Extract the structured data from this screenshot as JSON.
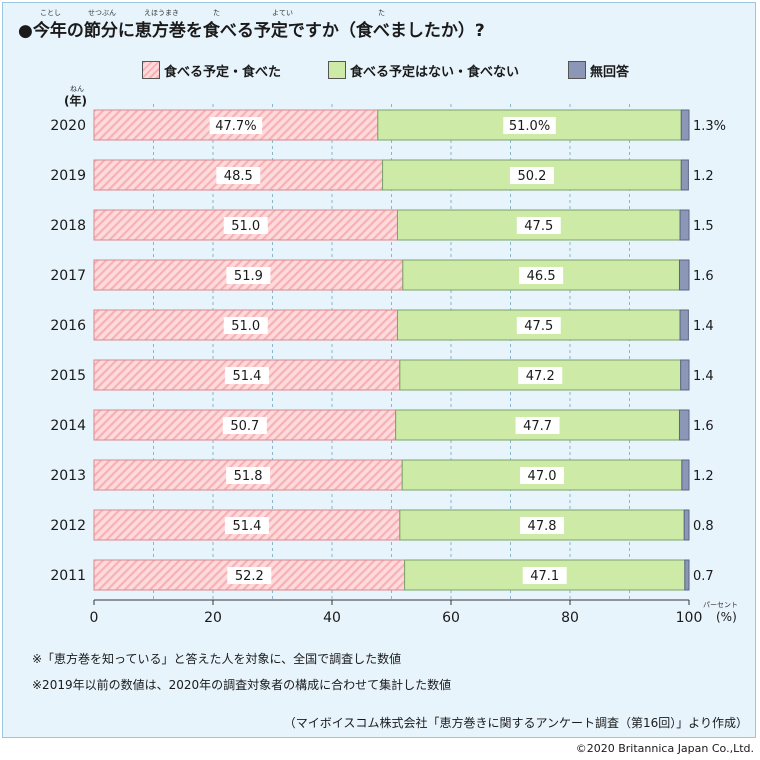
{
  "title": "●今年の節分に恵方巻を食べる予定ですか（食べましたか）?",
  "title_ruby": [
    "ことし",
    "せつぶん",
    "えほうまき",
    "た",
    "よてい",
    "た"
  ],
  "year_unit": "(年)",
  "year_unit_ruby": "ねん",
  "unit_label": "(%)",
  "unit_ruby": "パーセント",
  "notes": [
    "※「恵方巻を知っている」と答えた人を対象に、全国で調査した数値",
    "※2019年以前の数値は、2020年の調査対象者の構成に合わせて集計した数値"
  ],
  "source": "（マイボイスコム株式会社「恵方巻きに関するアンケート調査（第16回）」より作成）",
  "copyright": "©2020 Britannica Japan Co.,Ltd.",
  "colors": {
    "eat_fill": "#fddadc",
    "eat_hatch": "#f7b1b5",
    "no_fill": "#cdeaa6",
    "na_fill": "#8c97b8",
    "panel_bg": "#e8f4fb"
  },
  "chart_data": {
    "type": "bar",
    "orientation": "horizontal",
    "stacked": true,
    "categories": [
      "2020",
      "2019",
      "2018",
      "2017",
      "2016",
      "2015",
      "2014",
      "2013",
      "2012",
      "2011"
    ],
    "series": [
      {
        "name": "食べる予定・食べた",
        "values": [
          47.7,
          48.5,
          51.0,
          51.9,
          51.0,
          51.4,
          50.7,
          51.8,
          51.4,
          52.2
        ]
      },
      {
        "name": "食べる予定はない・食べない",
        "values": [
          51.0,
          50.2,
          47.5,
          46.5,
          47.5,
          47.2,
          47.7,
          47.0,
          47.8,
          47.1
        ]
      },
      {
        "name": "無回答",
        "values": [
          1.3,
          1.2,
          1.5,
          1.6,
          1.4,
          1.4,
          1.6,
          1.2,
          0.8,
          0.7
        ]
      }
    ],
    "data_labels": {
      "eat": [
        "47.7%",
        "48.5",
        "51.0",
        "51.9",
        "51.0",
        "51.4",
        "50.7",
        "51.8",
        "51.4",
        "52.2"
      ],
      "no": [
        "51.0%",
        "50.2",
        "47.5",
        "46.5",
        "47.5",
        "47.2",
        "47.7",
        "47.0",
        "47.8",
        "47.1"
      ],
      "na": [
        "1.3%",
        "1.2",
        "1.5",
        "1.6",
        "1.4",
        "1.4",
        "1.6",
        "1.2",
        "0.8",
        "0.7"
      ]
    },
    "x_ticks": [
      0,
      20,
      40,
      60,
      80,
      100
    ],
    "xlim": [
      0,
      100
    ],
    "grid": true,
    "legend_position": "top"
  }
}
